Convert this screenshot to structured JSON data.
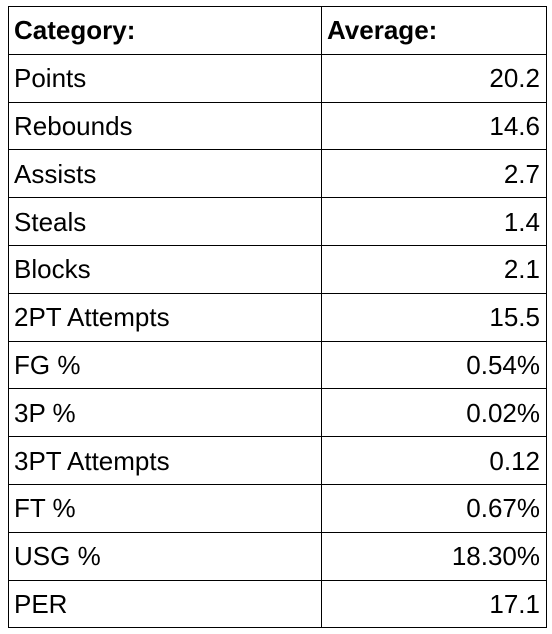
{
  "table": {
    "headers": [
      "Category:",
      "Average:"
    ],
    "rows": [
      {
        "category": "Points",
        "average": "20.2"
      },
      {
        "category": "Rebounds",
        "average": "14.6"
      },
      {
        "category": "Assists",
        "average": "2.7"
      },
      {
        "category": "Steals",
        "average": "1.4"
      },
      {
        "category": "Blocks",
        "average": "2.1"
      },
      {
        "category": "2PT Attempts",
        "average": "15.5"
      },
      {
        "category": "FG %",
        "average": "0.54%"
      },
      {
        "category": "3P %",
        "average": "0.02%"
      },
      {
        "category": "3PT Attempts",
        "average": "0.12"
      },
      {
        "category": "FT %",
        "average": "0.67%"
      },
      {
        "category": "USG %",
        "average": "18.30%"
      },
      {
        "category": "PER",
        "average": "17.1"
      }
    ]
  }
}
